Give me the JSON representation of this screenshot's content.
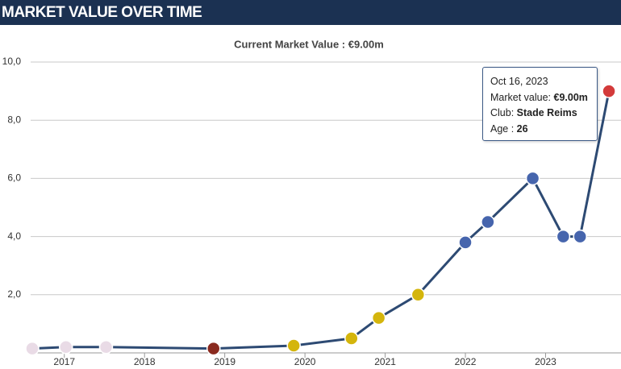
{
  "chart_data": {
    "type": "line",
    "title": "MARKET VALUE OVER TIME",
    "subtitle": "Current Market Value : €9.00m",
    "series": [
      {
        "color": "#2d4a73",
        "x": [
          2016.6,
          2017.02,
          2017.52,
          2018.86,
          2019.86,
          2020.58,
          2020.92,
          2021.41,
          2022.0,
          2022.28,
          2022.84,
          2023.22,
          2023.43,
          2023.79
        ],
        "values": [
          0.15,
          0.2,
          0.2,
          0.15,
          0.25,
          0.5,
          1.2,
          2.0,
          3.8,
          4.5,
          6.0,
          4.0,
          4.0,
          9.0
        ],
        "point_colors": [
          "#e9dbe6",
          "#e9dbe6",
          "#e9dbe6",
          "#8a2a1f",
          "#d4b50c",
          "#d4b50c",
          "#d4b50c",
          "#d4b50c",
          "#4665ad",
          "#4665ad",
          "#4665ad",
          "#4665ad",
          "#4665ad",
          "#d33a3a"
        ]
      }
    ],
    "xlim": [
      2016.58,
      2023.9
    ],
    "xticks": [
      2017,
      2018,
      2019,
      2020,
      2021,
      2022,
      2023
    ],
    "ylim": [
      0,
      10
    ],
    "yticks": [
      {
        "value": 2,
        "label": "2,0"
      },
      {
        "value": 4,
        "label": "4,0"
      },
      {
        "value": 6,
        "label": "6,0"
      },
      {
        "value": 8,
        "label": "8,0"
      },
      {
        "value": 10,
        "label": "10,0"
      }
    ],
    "grid": true,
    "tooltip": {
      "date": "Oct 16, 2023",
      "value_label": "Market value: ",
      "value": "€9.00m",
      "club_label": "Club: ",
      "club": "Stade Reims",
      "age_label": "Age : ",
      "age": "26"
    }
  }
}
